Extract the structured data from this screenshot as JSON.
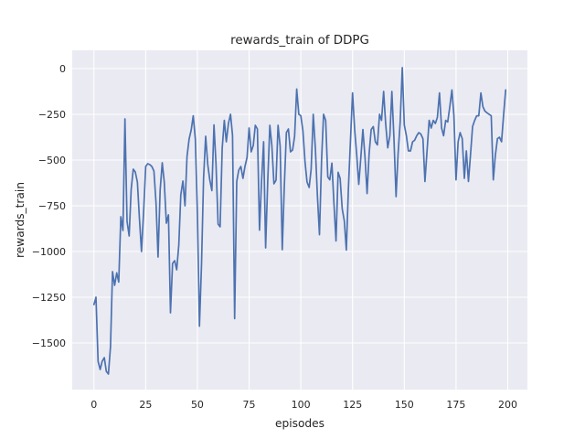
{
  "figure": {
    "title": "rewards_train of DDPG",
    "xlabel": "episodes",
    "ylabel": "rewards_train"
  },
  "chart_data": {
    "type": "line",
    "title": "rewards_train of DDPG",
    "xlabel": "episodes",
    "ylabel": "rewards_train",
    "grid": true,
    "legend": false,
    "style": "seaborn-darkgrid",
    "xlim": [
      -10.5,
      209.5
    ],
    "ylim": [
      -1755,
      100
    ],
    "x_ticks": [
      0,
      25,
      50,
      75,
      100,
      125,
      150,
      175,
      200
    ],
    "x_tick_labels": [
      "0",
      "25",
      "50",
      "75",
      "100",
      "125",
      "150",
      "175",
      "200"
    ],
    "y_ticks": [
      0,
      -250,
      -500,
      -750,
      -1000,
      -1250,
      -1500
    ],
    "y_tick_labels": [
      "0",
      "−250",
      "−500",
      "−750",
      "−1000",
      "−1250",
      "−1500"
    ],
    "colors": {
      "figure_background": "#ffffff",
      "axes_background": "#eaeaf2",
      "grid": "#ffffff",
      "line": "#4c72b0",
      "text": "#262626"
    },
    "series": [
      {
        "name": "rewards_train",
        "color": "#4c72b0",
        "x_start": 0,
        "x_step": 1,
        "values": [
          -1290,
          -1250,
          -1600,
          -1645,
          -1600,
          -1580,
          -1655,
          -1670,
          -1520,
          -1110,
          -1185,
          -1117,
          -1167,
          -810,
          -885,
          -275,
          -835,
          -915,
          -660,
          -550,
          -565,
          -620,
          -825,
          -1000,
          -785,
          -535,
          -520,
          -525,
          -535,
          -560,
          -735,
          -1030,
          -665,
          -515,
          -620,
          -845,
          -800,
          -1335,
          -1065,
          -1050,
          -1100,
          -965,
          -690,
          -615,
          -750,
          -480,
          -385,
          -335,
          -258,
          -385,
          -800,
          -1408,
          -1065,
          -600,
          -370,
          -525,
          -608,
          -667,
          -308,
          -520,
          -850,
          -865,
          -435,
          -283,
          -400,
          -300,
          -250,
          -365,
          -1367,
          -617,
          -555,
          -535,
          -600,
          -535,
          -485,
          -325,
          -455,
          -420,
          -310,
          -330,
          -883,
          -620,
          -400,
          -980,
          -617,
          -310,
          -420,
          -630,
          -610,
          -310,
          -425,
          -990,
          -650,
          -350,
          -330,
          -455,
          -445,
          -370,
          -112,
          -250,
          -258,
          -340,
          -510,
          -620,
          -650,
          -550,
          -250,
          -435,
          -690,
          -908,
          -500,
          -250,
          -283,
          -592,
          -608,
          -517,
          -733,
          -942,
          -567,
          -600,
          -767,
          -833,
          -992,
          -650,
          -383,
          -133,
          -333,
          -475,
          -633,
          -483,
          -333,
          -483,
          -683,
          -467,
          -333,
          -317,
          -400,
          -417,
          -250,
          -283,
          -125,
          -300,
          -433,
          -367,
          -125,
          -383,
          -700,
          -467,
          -292,
          5,
          -308,
          -367,
          -450,
          -450,
          -400,
          -392,
          -367,
          -350,
          -358,
          -383,
          -617,
          -450,
          -283,
          -325,
          -283,
          -300,
          -267,
          -133,
          -325,
          -367,
          -283,
          -292,
          -208,
          -117,
          -258,
          -608,
          -400,
          -350,
          -383,
          -600,
          -450,
          -617,
          -467,
          -317,
          -283,
          -258,
          -258,
          -133,
          -208,
          -233,
          -242,
          -250,
          -258,
          -608,
          -475,
          -383,
          -375,
          -400,
          -250,
          -117
        ]
      }
    ]
  }
}
